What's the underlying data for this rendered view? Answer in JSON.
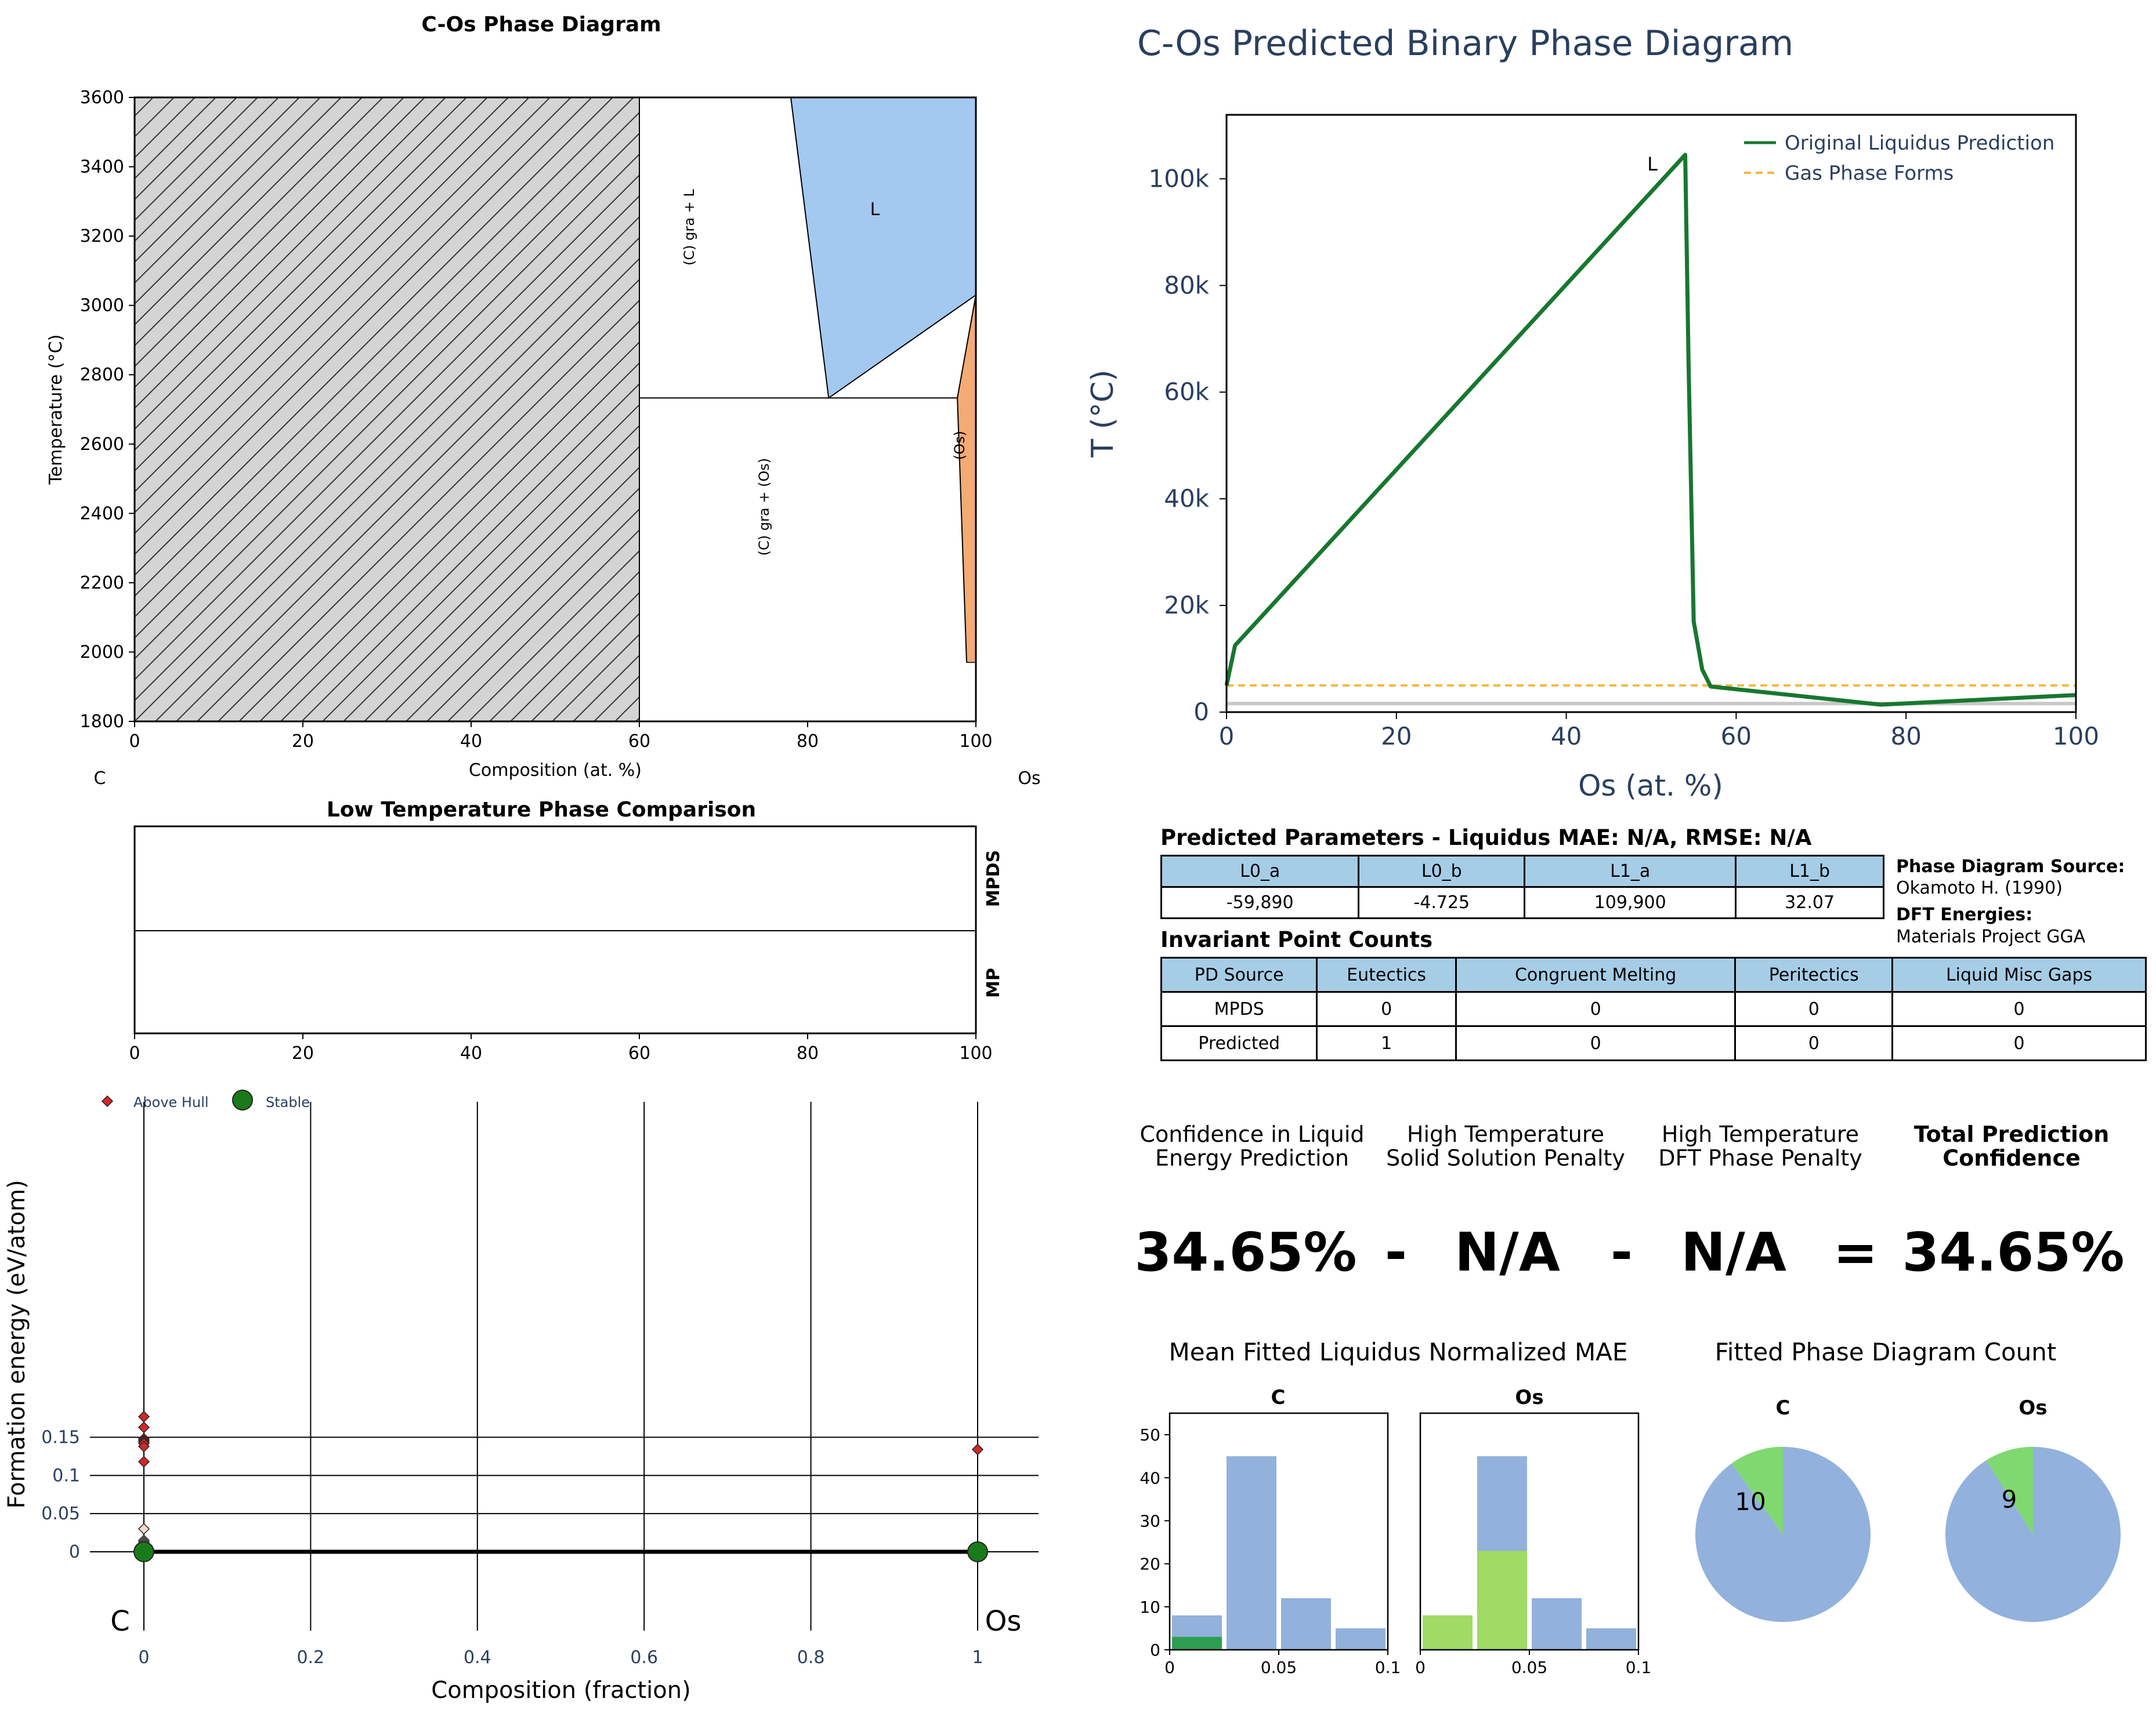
{
  "phase_diagram": {
    "title": "C-Os Phase Diagram",
    "xlabel": "Composition (at. %)",
    "ylabel": "Temperature (°C)",
    "left_element": "C",
    "right_element": "Os",
    "xticks": [
      "0",
      "20",
      "40",
      "60",
      "80",
      "100"
    ],
    "yticks": [
      "1800",
      "2000",
      "2200",
      "2400",
      "2600",
      "2800",
      "3000",
      "3200",
      "3400",
      "3600"
    ],
    "region_labels": {
      "liquid": "L",
      "gra_l": "(C) gra + L",
      "gra_os": "(C) gra + (Os)",
      "os": "(Os)"
    },
    "colors": {
      "hatch": "#d4d4d4",
      "liquid": "#a3c9f1",
      "os": "#f4aa73"
    }
  },
  "low_temp": {
    "title": "Low Temperature Phase Comparison",
    "rows": [
      "MPDS",
      "MP"
    ],
    "xticks": [
      "0",
      "20",
      "40",
      "60",
      "80",
      "100"
    ]
  },
  "hull": {
    "legend": [
      "Above Hull",
      "Stable"
    ],
    "xlabel": "Composition (fraction)",
    "ylabel": "Formation energy (eV/atom)",
    "xticks": [
      "0",
      "0.2",
      "0.4",
      "0.6",
      "0.8",
      "1"
    ],
    "yticks": [
      "0",
      "0.05",
      "0.1",
      "0.15"
    ],
    "left_element": "C",
    "right_element": "Os",
    "colors": {
      "above": "#d62728",
      "stable": "#1a7a1a"
    }
  },
  "predicted": {
    "title": "C-Os Predicted Binary Phase Diagram",
    "xlabel": "Os (at. %)",
    "ylabel": "T (°C)",
    "xticks": [
      "0",
      "20",
      "40",
      "60",
      "80",
      "100"
    ],
    "yticks": [
      "0",
      "20k",
      "40k",
      "60k",
      "80k",
      "100k"
    ],
    "legend": [
      "Original Liquidus Prediction",
      "Gas Phase Forms"
    ],
    "liquid_label": "L",
    "colors": {
      "liquidus": "#17772f",
      "gas": "#f5b842",
      "title": "#2a3f5f"
    }
  },
  "params": {
    "title": "Predicted Parameters - Liquidus MAE: N/A, RMSE: N/A",
    "headers": [
      "L0_a",
      "L0_b",
      "L1_a",
      "L1_b"
    ],
    "values": [
      "-59,890",
      "-4.725",
      "109,900",
      "32.07"
    ]
  },
  "source_info": {
    "pd_label": "Phase Diagram Source:",
    "pd_value": "Okamoto H. (1990)",
    "dft_label": "DFT Energies:",
    "dft_value": "Materials Project GGA"
  },
  "invariants": {
    "title": "Invariant Point Counts",
    "headers": [
      "PD Source",
      "Eutectics",
      "Congruent Melting",
      "Peritectics",
      "Liquid Misc Gaps"
    ],
    "rows": [
      [
        "MPDS",
        "0",
        "0",
        "0",
        "0"
      ],
      [
        "Predicted",
        "1",
        "0",
        "0",
        "0"
      ]
    ]
  },
  "confidence": {
    "labels": [
      [
        "Confidence in Liquid",
        "Energy Prediction"
      ],
      [
        "High Temperature",
        "Solid Solution Penalty"
      ],
      [
        "High Temperature",
        "DFT Phase Penalty"
      ],
      [
        "Total Prediction",
        "Confidence"
      ]
    ],
    "values": [
      "34.65%",
      "N/A",
      "N/A",
      "34.65%"
    ],
    "ops": [
      "-",
      "-",
      "="
    ]
  },
  "mae": {
    "title": "Mean Fitted Liquidus Normalized MAE",
    "panels": [
      "C",
      "Os"
    ],
    "xticks": [
      "0",
      "0.05",
      "0.1"
    ],
    "yticks": [
      "0",
      "10",
      "20",
      "30",
      "40",
      "50"
    ]
  },
  "counts": {
    "title": "Fitted Phase Diagram Count",
    "panels": [
      "C",
      "Os"
    ],
    "values": [
      "10",
      "9"
    ]
  },
  "chart_data": [
    {
      "type": "area",
      "title": "C-Os Phase Diagram",
      "xlabel": "Composition (at. %)",
      "ylabel": "Temperature (°C)",
      "xlim": [
        0,
        100
      ],
      "ylim": [
        1800,
        3600
      ],
      "regions": [
        {
          "name": "hatched",
          "polygon": [
            [
              0,
              1800
            ],
            [
              60,
              1800
            ],
            [
              60,
              3600
            ],
            [
              0,
              3600
            ]
          ]
        },
        {
          "name": "L",
          "polygon": [
            [
              78,
              3600
            ],
            [
              100,
              3600
            ],
            [
              100,
              3030
            ],
            [
              82.5,
              2733
            ]
          ]
        },
        {
          "name": "(Os)",
          "polygon": [
            [
              100,
              3030
            ],
            [
              97.8,
              2733
            ],
            [
              98.9,
              1970
            ],
            [
              100,
              1970
            ]
          ]
        }
      ],
      "lines": [
        {
          "points": [
            [
              60,
              2733
            ],
            [
              97.8,
              2733
            ]
          ]
        },
        {
          "points": [
            [
              60,
              1800
            ],
            [
              60,
              3600
            ]
          ]
        },
        {
          "points": [
            [
              78,
              3600
            ],
            [
              82.5,
              2733
            ],
            [
              100,
              3030
            ]
          ]
        },
        {
          "points": [
            [
              100,
              3030
            ],
            [
              97.8,
              2733
            ],
            [
              98.9,
              1970
            ]
          ]
        }
      ]
    },
    {
      "type": "scatter",
      "xlabel": "Composition (fraction)",
      "ylabel": "Formation energy (eV/atom)",
      "xlim": [
        0,
        1
      ],
      "series": [
        {
          "name": "Above Hull",
          "points": [
            [
              0,
              0.177
            ],
            [
              0,
              0.163
            ],
            [
              0,
              0.148
            ],
            [
              0,
              0.146
            ],
            [
              0,
              0.144
            ],
            [
              0,
              0.142
            ],
            [
              0,
              0.138
            ],
            [
              0,
              0.118
            ],
            [
              1,
              0.134
            ],
            [
              0,
              0.03
            ],
            [
              0,
              0.015
            ],
            [
              0,
              0.013
            ],
            [
              0,
              0.011
            ],
            [
              0,
              0.009
            ],
            [
              0,
              0.007
            ],
            [
              0,
              0.005
            ],
            [
              0,
              0.003
            ]
          ]
        },
        {
          "name": "Stable",
          "points": [
            [
              0,
              0
            ],
            [
              1,
              0
            ]
          ]
        }
      ]
    },
    {
      "type": "line",
      "title": "C-Os Predicted Binary Phase Diagram",
      "xlabel": "Os (at. %)",
      "ylabel": "T (°C)",
      "xlim": [
        0,
        100
      ],
      "ylim": [
        0,
        112000
      ],
      "series": [
        {
          "name": "Original Liquidus Prediction",
          "points": [
            [
              0,
              5000
            ],
            [
              1,
              12500
            ],
            [
              54,
              104500
            ],
            [
              54.4,
              65000
            ],
            [
              55,
              17000
            ],
            [
              56,
              8000
            ],
            [
              57,
              4800
            ],
            [
              77,
              1400
            ],
            [
              100,
              3200
            ]
          ]
        },
        {
          "name": "Gas Phase Forms",
          "points": [
            [
              0,
              5000
            ],
            [
              100,
              5000
            ]
          ]
        },
        {
          "points": [
            [
              0,
              1600
            ],
            [
              100,
              1600
            ]
          ]
        }
      ]
    },
    {
      "type": "bar",
      "panel": "C",
      "bin_edges": [
        0,
        0.025,
        0.05,
        0.075,
        0.1
      ],
      "series": [
        {
          "values": [
            8,
            45,
            12,
            5
          ]
        },
        {
          "values": [
            3,
            0,
            0,
            0
          ]
        }
      ],
      "ylim": [
        0,
        55
      ]
    },
    {
      "type": "bar",
      "panel": "Os",
      "bin_edges": [
        0,
        0.025,
        0.05,
        0.075,
        0.1
      ],
      "series": [
        {
          "values": [
            8,
            45,
            12,
            5
          ]
        },
        {
          "values": [
            8,
            23,
            0,
            0
          ]
        }
      ],
      "ylim": [
        0,
        55
      ]
    },
    {
      "type": "pie",
      "panel": "C",
      "values": [
        10,
        90
      ]
    },
    {
      "type": "pie",
      "panel": "Os",
      "values": [
        9,
        91
      ]
    }
  ]
}
